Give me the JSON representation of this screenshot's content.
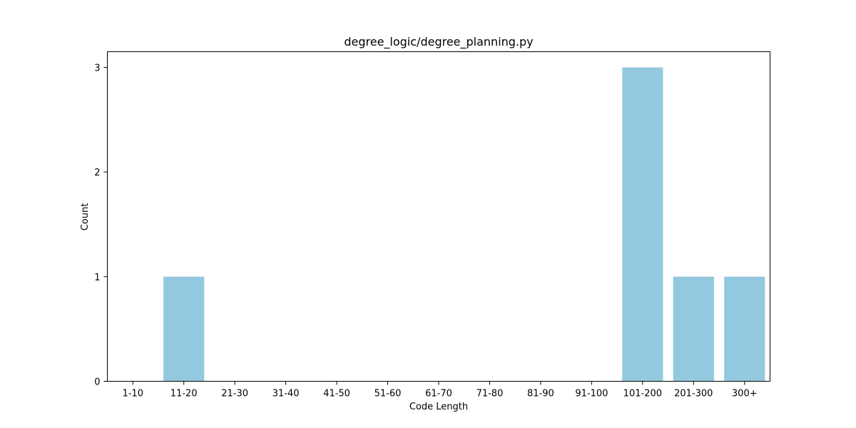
{
  "chart_data": {
    "type": "bar",
    "title": "degree_logic/degree_planning.py",
    "xlabel": "Code Length",
    "ylabel": "Count",
    "categories": [
      "1-10",
      "11-20",
      "21-30",
      "31-40",
      "41-50",
      "51-60",
      "61-70",
      "71-80",
      "81-90",
      "91-100",
      "101-200",
      "201-300",
      "300+"
    ],
    "values": [
      0,
      1,
      0,
      0,
      0,
      0,
      0,
      0,
      0,
      0,
      3,
      1,
      1
    ],
    "ylim": [
      0,
      3.15
    ],
    "yticks": [
      "0",
      "1",
      "2",
      "3"
    ],
    "bar_color": "#92c9df",
    "grid": false,
    "legend": false
  }
}
